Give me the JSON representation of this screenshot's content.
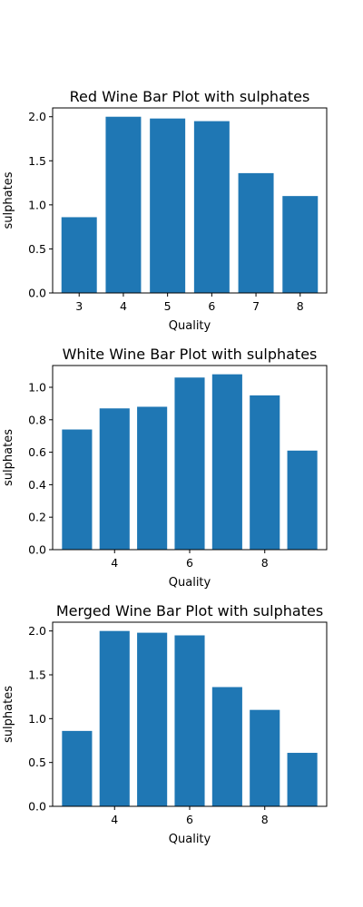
{
  "chart_data": [
    {
      "type": "bar",
      "title": "Red Wine Bar Plot with sulphates",
      "xlabel": "Quality",
      "ylabel": "sulphates",
      "x": [
        3,
        4,
        5,
        6,
        7,
        8
      ],
      "values": [
        0.86,
        2.0,
        1.98,
        1.95,
        1.36,
        1.1
      ],
      "xticks": [
        3,
        4,
        5,
        6,
        7,
        8
      ],
      "yticks": [
        0.0,
        0.5,
        1.0,
        1.5,
        2.0
      ],
      "xlim": [
        2.4,
        8.6
      ],
      "ylim": [
        0,
        2.1
      ],
      "grid": false,
      "color": "#1f77b4"
    },
    {
      "type": "bar",
      "title": "White Wine Bar Plot with sulphates",
      "xlabel": "Quality",
      "ylabel": "sulphates",
      "x": [
        3,
        4,
        5,
        6,
        7,
        8,
        9
      ],
      "values": [
        0.74,
        0.87,
        0.88,
        1.06,
        1.08,
        0.95,
        0.61
      ],
      "xticks": [
        4,
        6,
        8
      ],
      "yticks": [
        0.0,
        0.2,
        0.4,
        0.6,
        0.8,
        1.0
      ],
      "xlim": [
        2.35,
        9.65
      ],
      "ylim": [
        0,
        1.134
      ],
      "grid": false,
      "color": "#1f77b4"
    },
    {
      "type": "bar",
      "title": "Merged Wine Bar Plot with sulphates",
      "xlabel": "Quality",
      "ylabel": "sulphates",
      "x": [
        3,
        4,
        5,
        6,
        7,
        8,
        9
      ],
      "values": [
        0.86,
        2.0,
        1.98,
        1.95,
        1.36,
        1.1,
        0.61
      ],
      "xticks": [
        4,
        6,
        8
      ],
      "yticks": [
        0.0,
        0.5,
        1.0,
        1.5,
        2.0
      ],
      "xlim": [
        2.35,
        9.65
      ],
      "ylim": [
        0,
        2.1
      ],
      "grid": false,
      "color": "#1f77b4"
    }
  ]
}
